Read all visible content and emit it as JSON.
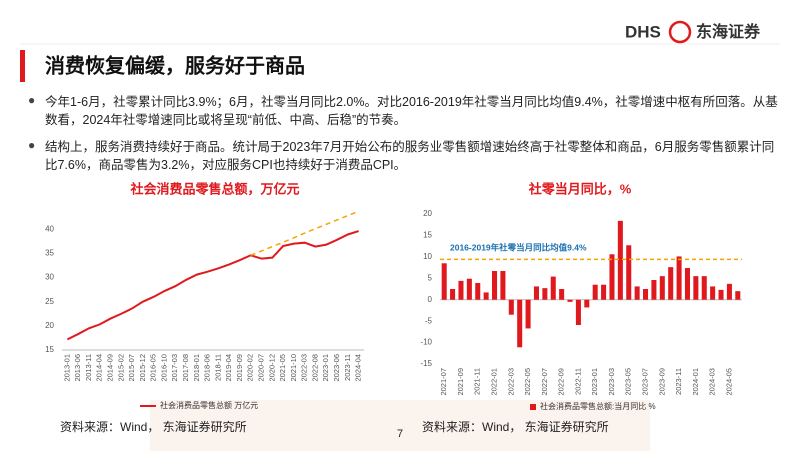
{
  "header": {
    "title": "消费恢复偏缓，服务好于商品",
    "logo_text": "DHS",
    "company": "东海证券"
  },
  "bullets": [
    "今年1-6月，社零累计同比3.9%；6月，社零当月同比2.0%。对比2016-2019年社零当月同比均值9.4%，社零增速中枢有所回落。从基数看，2024年社零增速同比或将呈现“前低、中高、后稳”的节奏。",
    "结构上，服务消费持续好于商品。统计局于2023年7月开始公布的服务业零售额增速始终高于社零整体和商品，6月服务零售额累计同比7.6%，商品零售为3.2%，对应服务CPI也持续好于消费品CPI。"
  ],
  "chart_data": [
    {
      "type": "line",
      "title": "社会消费品零售总额，万亿元",
      "categories": [
        "2013-01",
        "2013-06",
        "2013-11",
        "2014-04",
        "2014-09",
        "2015-02",
        "2015-07",
        "2015-12",
        "2016-05",
        "2016-10",
        "2017-03",
        "2017-08",
        "2018-01",
        "2018-06",
        "2018-11",
        "2019-04",
        "2019-09",
        "2020-02",
        "2020-07",
        "2020-12",
        "2021-05",
        "2021-10",
        "2022-03",
        "2022-08",
        "2023-01",
        "2023-06",
        "2023-11",
        "2024-04"
      ],
      "series": [
        {
          "name": "社会消费品零售总额 万亿元",
          "color": "#e0191e",
          "values": [
            17.2,
            18.3,
            19.5,
            20.3,
            21.5,
            22.5,
            23.6,
            25.0,
            26.0,
            27.2,
            28.2,
            29.5,
            30.6,
            31.2,
            31.9,
            32.7,
            33.6,
            34.6,
            33.9,
            34.1,
            36.5,
            37.0,
            37.2,
            36.4,
            36.8,
            37.8,
            38.9,
            39.6
          ]
        },
        {
          "color": "#f5a300",
          "dashed": true,
          "values": [
            null,
            null,
            null,
            null,
            null,
            null,
            null,
            null,
            null,
            null,
            null,
            null,
            null,
            null,
            null,
            null,
            null,
            34.6,
            35.5,
            36.4,
            37.3,
            38.2,
            39.2,
            40.1,
            41.0,
            41.9,
            42.8,
            43.7
          ]
        }
      ],
      "ylim": [
        15,
        45
      ],
      "yticks": [
        15,
        20,
        25,
        30,
        35,
        40
      ]
    },
    {
      "type": "bar",
      "title": "社零当月同比，%",
      "categories": [
        "2021-07",
        null,
        "2021-09",
        null,
        "2021-11",
        null,
        "2022-01",
        null,
        "2022-03",
        null,
        "2022-05",
        null,
        "2022-07",
        null,
        "2022-09",
        null,
        "2022-11",
        null,
        "2023-01",
        null,
        "2023-03",
        null,
        "2023-05",
        null,
        "2023-07",
        null,
        "2023-09",
        null,
        "2023-11",
        null,
        "2024-01",
        null,
        "2024-03",
        null,
        "2024-05",
        null
      ],
      "series": [
        {
          "name": "社会消费品零售总额:当月同比 %",
          "color": "#e0191e",
          "values": [
            8.5,
            2.5,
            4.4,
            4.9,
            3.9,
            1.7,
            6.7,
            6.7,
            -3.5,
            -11.1,
            -6.7,
            3.1,
            2.7,
            5.4,
            2.5,
            -0.5,
            -5.9,
            -1.8,
            3.5,
            3.5,
            10.6,
            18.4,
            12.7,
            3.1,
            2.5,
            4.6,
            5.5,
            7.6,
            10.1,
            7.4,
            5.5,
            5.5,
            3.1,
            2.3,
            3.7,
            2.0
          ]
        }
      ],
      "reference_line": {
        "value": 9.4,
        "label": "2016-2019年社零当月同比均值9.4%",
        "color": "#f5a300"
      },
      "ylim": [
        -15,
        20
      ],
      "yticks": [
        -15,
        -10,
        -5,
        0,
        5,
        10,
        15,
        20
      ]
    }
  ],
  "sources": [
    "资料来源：Wind， 东海证券研究所",
    "资料来源：Wind， 东海证券研究所"
  ],
  "page_number": "7"
}
